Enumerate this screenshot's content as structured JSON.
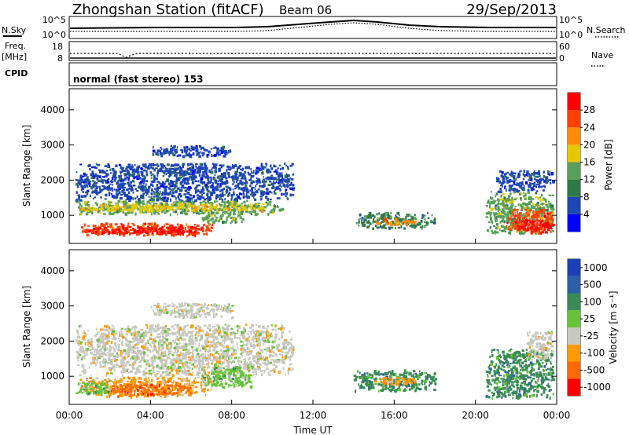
{
  "header": {
    "station": "Zhongshan Station (fitACF)",
    "beam": "Beam 06",
    "date": "29/Sep/2013"
  },
  "strip_panels": {
    "nsky": {
      "left_label": "N.Sky",
      "right_label": "N.Search",
      "left_ticks": [
        "10^5",
        "10^0"
      ],
      "right_ticks": [
        "10^5",
        "10^0"
      ]
    },
    "freq": {
      "left_label_top": "Freq.",
      "left_label_bottom": "[MHz]",
      "right_label": "Nave",
      "left_ticks": [
        "18",
        "8"
      ],
      "right_ticks": [
        "60",
        "0"
      ]
    },
    "cpid": {
      "left_label": "CPID",
      "mode_text": "normal (fast stereo) 153"
    }
  },
  "colors": {
    "power": [
      "#0000ff",
      "#1e46b4",
      "#2f7a48",
      "#5aa05a",
      "#e6c800",
      "#ff8c00",
      "#ff4000",
      "#ff0000"
    ],
    "velocity": [
      "#1c3fb5",
      "#2c5fa8",
      "#3a8a55",
      "#66c33a",
      "#c8c8c0",
      "#ff9a00",
      "#ff6a00",
      "#ff0000"
    ]
  },
  "chart_data": [
    {
      "type": "heatmap",
      "name": "power",
      "ylabel": "Slant Range [km]",
      "y_ticks": [
        "1000",
        "2000",
        "3000",
        "4000"
      ],
      "y_tick_values": [
        1000,
        2000,
        3000,
        4000
      ],
      "ylim": [
        200,
        4600
      ],
      "x_ticks": [],
      "xlim": [
        0,
        24
      ],
      "colorbar": {
        "label": "Power [dB]",
        "ticks": [
          "4",
          "8",
          "12",
          "16",
          "20",
          "24",
          "28"
        ],
        "tick_values": [
          4,
          8,
          12,
          16,
          20,
          24,
          28
        ],
        "range": [
          0,
          32
        ]
      },
      "blobs": [
        {
          "x0": 0.3,
          "x1": 10.5,
          "r0": 1050,
          "r1": 1450,
          "c": 3
        },
        {
          "x0": 0.3,
          "x1": 9.5,
          "r0": 1150,
          "r1": 1350,
          "c": 4
        },
        {
          "x0": 0.5,
          "x1": 7.0,
          "r0": 450,
          "r1": 800,
          "c": 6
        },
        {
          "x0": 0.8,
          "x1": 6.5,
          "r0": 500,
          "r1": 700,
          "c": 7
        },
        {
          "x0": 0.3,
          "x1": 11.0,
          "r0": 1450,
          "r1": 2500,
          "c": 1
        },
        {
          "x0": 4.0,
          "x1": 8.0,
          "r0": 2700,
          "r1": 3000,
          "c": 1
        },
        {
          "x0": 6.5,
          "x1": 8.5,
          "r0": 800,
          "r1": 1100,
          "c": 3
        },
        {
          "x0": 14.0,
          "x1": 18.0,
          "r0": 650,
          "r1": 1100,
          "c": 2
        },
        {
          "x0": 15.0,
          "x1": 17.0,
          "r0": 750,
          "r1": 950,
          "c": 5
        },
        {
          "x0": 20.5,
          "x1": 23.8,
          "r0": 500,
          "r1": 1700,
          "c": 3
        },
        {
          "x0": 21.5,
          "x1": 23.8,
          "r0": 500,
          "r1": 1200,
          "c": 6
        },
        {
          "x0": 22.0,
          "x1": 23.8,
          "r0": 550,
          "r1": 900,
          "c": 7
        },
        {
          "x0": 21.0,
          "x1": 23.8,
          "r0": 1700,
          "r1": 2300,
          "c": 1
        }
      ]
    },
    {
      "type": "heatmap",
      "name": "velocity",
      "ylabel": "Slant Range [km]",
      "y_ticks": [
        "1000",
        "2000",
        "3000",
        "4000"
      ],
      "y_tick_values": [
        1000,
        2000,
        3000,
        4000
      ],
      "ylim": [
        200,
        4600
      ],
      "x_ticks": [
        "00:00",
        "04:00",
        "08:00",
        "12:00",
        "16:00",
        "20:00",
        "00:00"
      ],
      "x_tick_values": [
        0,
        4,
        8,
        12,
        16,
        20,
        24
      ],
      "xlim": [
        0,
        24
      ],
      "xlabel": "Time UT",
      "colorbar": {
        "label": "Velocity [m s⁻¹]",
        "ticks": [
          "1000",
          "500",
          "100",
          "25",
          "-25",
          "-100",
          "-500",
          "-1000"
        ],
        "tick_values": [
          1000,
          500,
          100,
          25,
          -25,
          -100,
          -500,
          -1000
        ]
      },
      "blobs": [
        {
          "x0": 0.3,
          "x1": 11.0,
          "r0": 1050,
          "r1": 2500,
          "c": 4
        },
        {
          "x0": 4.0,
          "x1": 8.0,
          "r0": 2700,
          "r1": 3100,
          "c": 4
        },
        {
          "x0": 0.5,
          "x1": 7.0,
          "r0": 450,
          "r1": 1000,
          "c": 5
        },
        {
          "x0": 2.0,
          "x1": 6.0,
          "r0": 500,
          "r1": 800,
          "c": 6
        },
        {
          "x0": 0.3,
          "x1": 2.0,
          "r0": 500,
          "r1": 900,
          "c": 3
        },
        {
          "x0": 6.5,
          "x1": 9.0,
          "r0": 700,
          "r1": 1300,
          "c": 3
        },
        {
          "x0": 14.0,
          "x1": 18.0,
          "r0": 600,
          "r1": 1200,
          "c": 2
        },
        {
          "x0": 15.0,
          "x1": 17.0,
          "r0": 800,
          "r1": 1000,
          "c": 5
        },
        {
          "x0": 20.5,
          "x1": 23.8,
          "r0": 400,
          "r1": 1800,
          "c": 2
        },
        {
          "x0": 22.5,
          "x1": 23.8,
          "r0": 1500,
          "r1": 2300,
          "c": 4
        }
      ]
    }
  ]
}
